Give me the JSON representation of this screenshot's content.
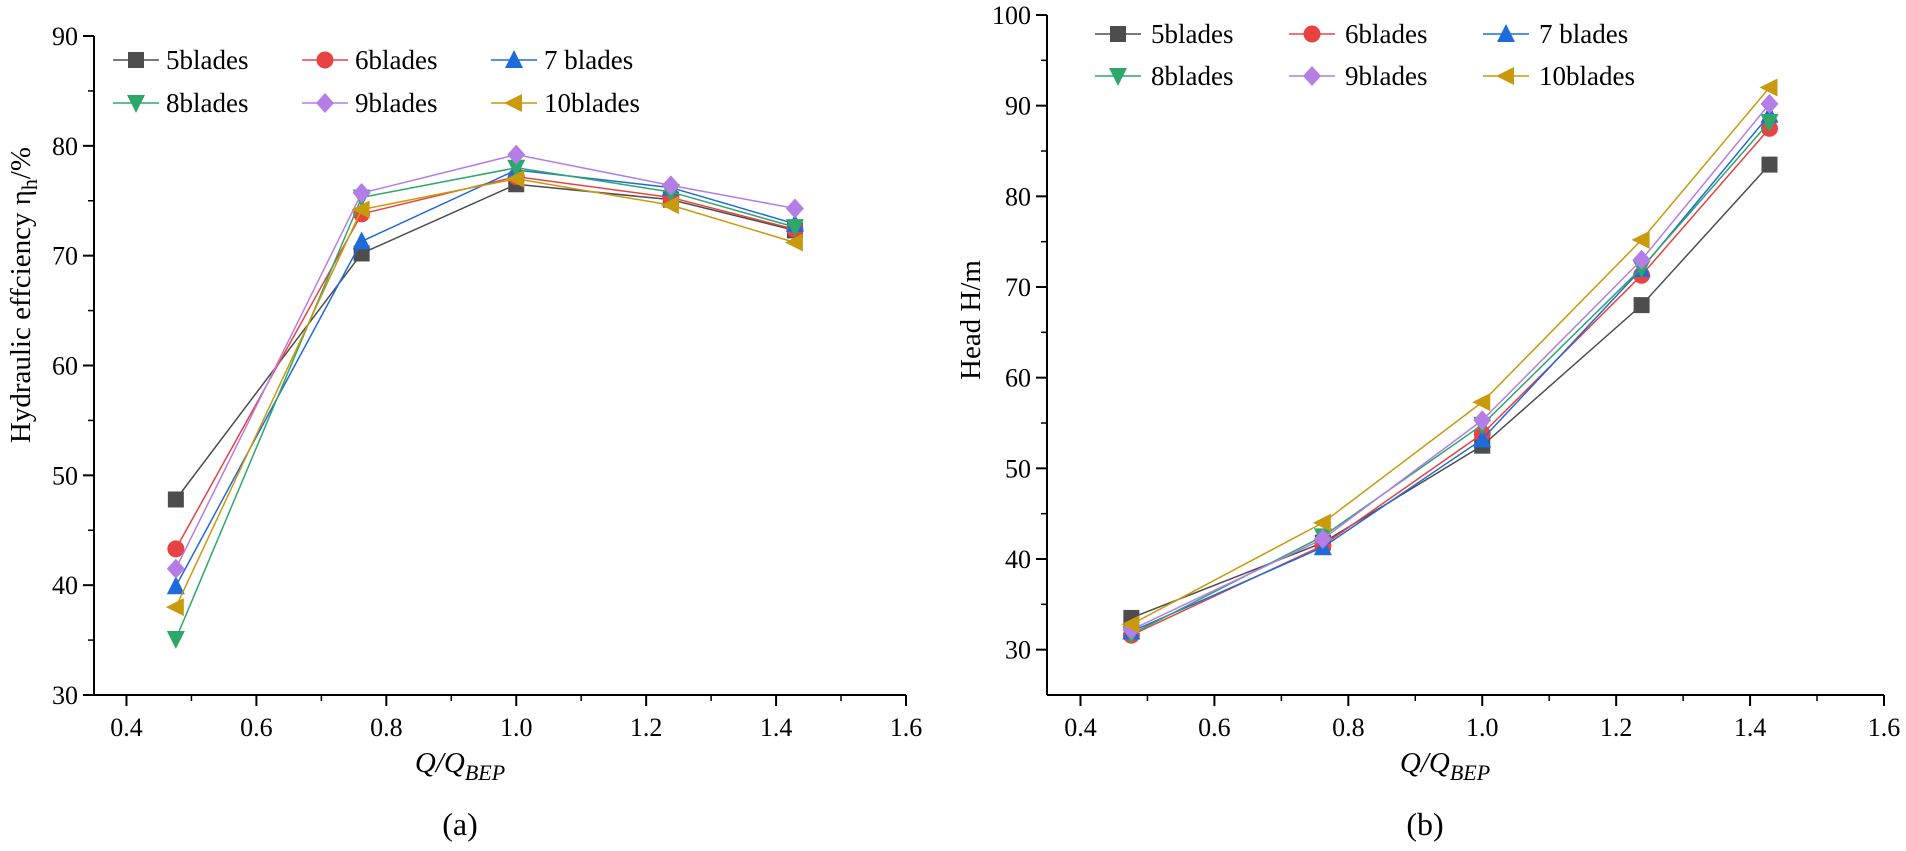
{
  "chart_data": [
    {
      "type": "line",
      "panel_label": "(a)",
      "xlabel": "Q/Q",
      "xlabel_sub": "BEP",
      "ylabel": "Hydraulic effciency η",
      "ylabel_sub": "h",
      "ylabel_suffix": "/%",
      "xlim": [
        0.35,
        1.6
      ],
      "ylim": [
        30,
        90
      ],
      "xticks": [
        0.4,
        0.6,
        0.8,
        1.0,
        1.2,
        1.4,
        1.6
      ],
      "xtick_labels": [
        "0.4",
        "0.6",
        "0.8",
        "1.0",
        "1.2",
        "1.4",
        "1.6"
      ],
      "yticks": [
        30,
        40,
        50,
        60,
        70,
        80,
        90
      ],
      "ytick_labels": [
        "30",
        "40",
        "50",
        "60",
        "70",
        "80",
        "90"
      ],
      "grid": false,
      "legend_position": "top-left, 3 columns",
      "x": [
        0.476,
        0.762,
        1.0,
        1.238,
        1.429
      ],
      "series": [
        {
          "name": "5blades",
          "color": "#4d4d4d",
          "marker": "square",
          "values": [
            47.8,
            70.2,
            76.5,
            75.1,
            72.3
          ]
        },
        {
          "name": "6blades",
          "color": "#e84343",
          "marker": "circle",
          "values": [
            43.3,
            73.8,
            77.2,
            75.3,
            72.4
          ]
        },
        {
          "name": "7 blades",
          "color": "#1f6bd9",
          "marker": "triangle-up",
          "values": [
            39.9,
            71.3,
            77.8,
            76.2,
            72.9
          ]
        },
        {
          "name": "8blades",
          "color": "#2ea76b",
          "marker": "triangle-down",
          "values": [
            35.1,
            75.3,
            78.0,
            75.8,
            72.6
          ]
        },
        {
          "name": "9blades",
          "color": "#b57de6",
          "marker": "diamond",
          "values": [
            41.5,
            75.7,
            79.2,
            76.4,
            74.3
          ]
        },
        {
          "name": "10blades",
          "color": "#c99a0d",
          "marker": "triangle-left",
          "values": [
            38.0,
            74.2,
            77.0,
            74.6,
            71.2
          ]
        }
      ]
    },
    {
      "type": "line",
      "panel_label": "(b)",
      "xlabel": "Q/Q",
      "xlabel_sub": "BEP",
      "ylabel": "Head H/m",
      "ylabel_sub": "",
      "ylabel_suffix": "",
      "xlim": [
        0.35,
        1.6
      ],
      "ylim": [
        25,
        100
      ],
      "xticks": [
        0.4,
        0.6,
        0.8,
        1.0,
        1.2,
        1.4,
        1.6
      ],
      "xtick_labels": [
        "0.4",
        "0.6",
        "0.8",
        "1.0",
        "1.2",
        "1.4",
        "1.6"
      ],
      "yticks": [
        30,
        40,
        50,
        60,
        70,
        80,
        90,
        100
      ],
      "ytick_labels": [
        "30",
        "40",
        "50",
        "60",
        "70",
        "80",
        "90",
        "100"
      ],
      "grid": false,
      "legend_position": "top-left, 3 columns",
      "x": [
        0.476,
        0.762,
        1.0,
        1.238,
        1.429
      ],
      "series": [
        {
          "name": "5blades",
          "color": "#4d4d4d",
          "marker": "square",
          "values": [
            33.5,
            41.8,
            52.5,
            68.0,
            83.5
          ]
        },
        {
          "name": "6blades",
          "color": "#e84343",
          "marker": "circle",
          "values": [
            31.6,
            41.5,
            53.8,
            71.3,
            87.5
          ]
        },
        {
          "name": "7 blades",
          "color": "#1f6bd9",
          "marker": "triangle-up",
          "values": [
            32.0,
            41.3,
            53.2,
            72.0,
            89.0
          ]
        },
        {
          "name": "8blades",
          "color": "#2ea76b",
          "marker": "triangle-down",
          "values": [
            31.7,
            42.5,
            54.8,
            72.1,
            88.2
          ]
        },
        {
          "name": "9blades",
          "color": "#b57de6",
          "marker": "diamond",
          "values": [
            32.2,
            42.2,
            55.3,
            73.0,
            90.2
          ]
        },
        {
          "name": "10blades",
          "color": "#c99a0d",
          "marker": "triangle-left",
          "values": [
            32.8,
            44.0,
            57.3,
            75.2,
            92.0
          ]
        }
      ]
    }
  ]
}
